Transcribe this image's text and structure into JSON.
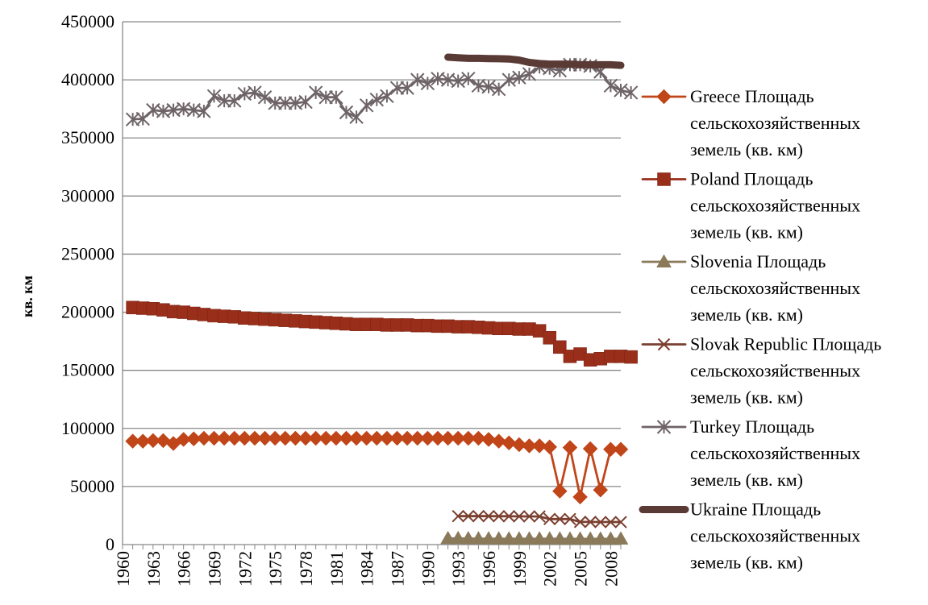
{
  "chart_data": {
    "type": "line",
    "title": "",
    "xlabel": "",
    "ylabel": "кв. км",
    "ylim": [
      0,
      450000
    ],
    "yticks": [
      "0",
      "50000",
      "100000",
      "150000",
      "200000",
      "250000",
      "300000",
      "350000",
      "400000",
      "450000"
    ],
    "xlim": [
      1960,
      2009
    ],
    "xticks": [
      "1960",
      "1963",
      "1966",
      "1969",
      "1972",
      "1975",
      "1978",
      "1981",
      "1984",
      "1987",
      "1990",
      "1993",
      "1996",
      "1999",
      "2002",
      "2005",
      "2008"
    ],
    "grid": "horizontal",
    "legend_position": "right",
    "series": [
      {
        "name_lines": [
          "Greece Площадь",
          "сельскохозяйственных",
          "земель (кв. км)"
        ],
        "color": "#C0461A",
        "marker": "diamond",
        "start_year": 1961,
        "values": [
          89000,
          89000,
          89500,
          89500,
          87000,
          90500,
          91000,
          91500,
          91500,
          91500,
          91500,
          91500,
          91500,
          91500,
          91500,
          91500,
          91500,
          91500,
          91500,
          91500,
          91500,
          91500,
          91500,
          91500,
          91500,
          91500,
          91500,
          91500,
          91500,
          91500,
          91500,
          91500,
          91500,
          91500,
          91500,
          90500,
          89000,
          87500,
          86000,
          85000,
          85000,
          84000,
          46000,
          83500,
          41000,
          82500,
          47000,
          82000,
          82000
        ]
      },
      {
        "name_lines": [
          "Poland Площадь",
          "сельскохозяйственных",
          "земель (кв. км)"
        ],
        "color": "#992E1A",
        "marker": "square",
        "start_year": 1961,
        "values": [
          204000,
          203500,
          203000,
          202000,
          200500,
          200000,
          199000,
          198000,
          197000,
          196500,
          196000,
          195000,
          194500,
          194000,
          193500,
          193000,
          192500,
          192000,
          191500,
          191000,
          190500,
          190000,
          189500,
          189500,
          189500,
          189000,
          189000,
          189000,
          188500,
          188500,
          188000,
          188000,
          187500,
          187500,
          187000,
          186500,
          186000,
          186000,
          185500,
          185500,
          184000,
          178000,
          170000,
          162000,
          164000,
          159000,
          160000,
          162000,
          162000,
          161500
        ]
      },
      {
        "name_lines": [
          "Slovenia Площадь",
          "сельскохозяйственных",
          "земель (кв. км)"
        ],
        "color": "#8A7A5A",
        "marker": "triangle",
        "start_year": 1992,
        "values": [
          5300,
          5300,
          5200,
          5100,
          5100,
          5000,
          5000,
          5000,
          5000,
          5000,
          5000,
          5000,
          4900,
          4900,
          4900,
          4900,
          4900,
          4900
        ]
      },
      {
        "name_lines": [
          "Slovak Republic Площадь",
          "сельскохозяйственных",
          "земель (кв. км)"
        ],
        "color": "#7A3F2F",
        "marker": "x",
        "start_year": 1993,
        "values": [
          24500,
          24500,
          24500,
          24500,
          24400,
          24400,
          24300,
          24300,
          24200,
          22000,
          22000,
          22000,
          19500,
          19500,
          19400,
          19400,
          19400
        ]
      },
      {
        "name_lines": [
          "Turkey Площадь",
          "сельскохозяйственных",
          "земель (кв. км)"
        ],
        "color": "#6E6468",
        "marker": "star",
        "start_year": 1961,
        "values": [
          366000,
          366500,
          374000,
          373000,
          374000,
          375000,
          374000,
          373000,
          386000,
          382000,
          382000,
          388000,
          389000,
          385000,
          380000,
          380000,
          380000,
          381000,
          389000,
          385000,
          385000,
          372000,
          368000,
          378000,
          383000,
          386000,
          393000,
          393000,
          400000,
          397000,
          401000,
          400000,
          399000,
          401000,
          395000,
          394000,
          392000,
          400000,
          402000,
          405000,
          411000,
          410000,
          408000,
          413000,
          413000,
          412000,
          407000,
          395000,
          391000,
          389000
        ]
      },
      {
        "name_lines": [
          "Ukraine Площадь",
          "сельскохозяйственных",
          "земель (кв. км)"
        ],
        "color": "#5A3A35",
        "marker": "none",
        "start_year": 1992,
        "values": [
          419500,
          419000,
          418500,
          418500,
          418300,
          418200,
          418000,
          417000,
          415000,
          414000,
          413500,
          413500,
          413500,
          413000,
          413000,
          413000,
          413000,
          412500
        ]
      }
    ]
  }
}
